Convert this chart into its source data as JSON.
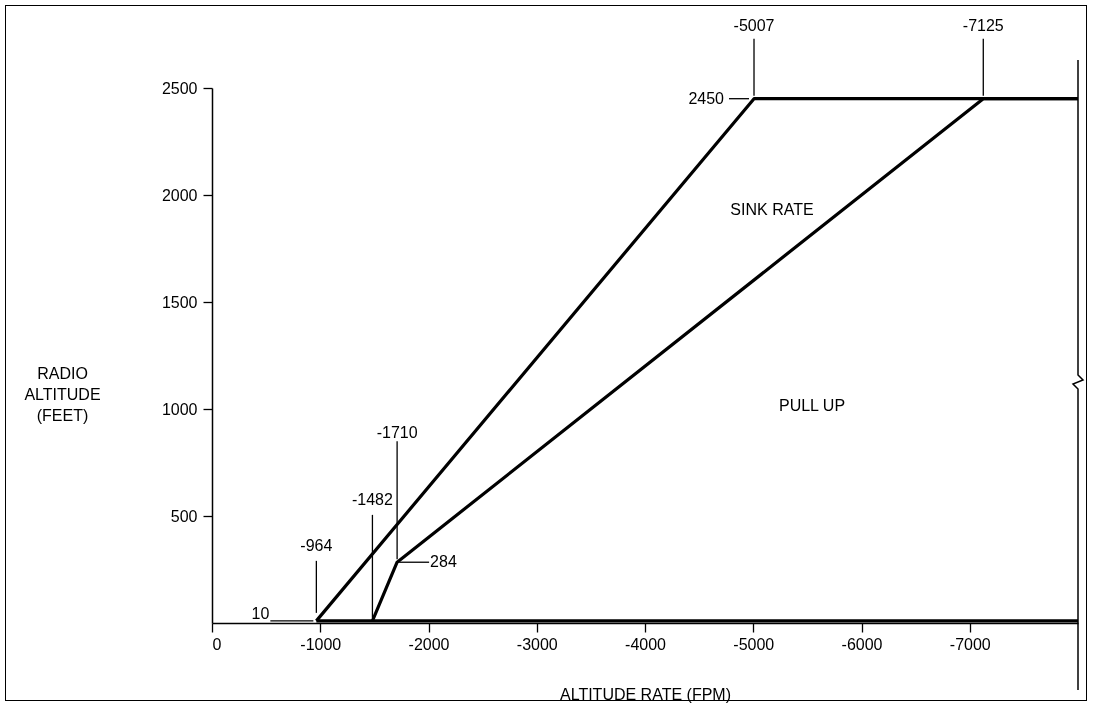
{
  "chart_data": {
    "type": "line",
    "xlabel": "ALTITUDE RATE (FPM)",
    "ylabel": "RADIO ALTITUDE (FEET)",
    "xlim": [
      0,
      -8000
    ],
    "xticks": [
      0,
      -1000,
      -2000,
      -3000,
      -4000,
      -5000,
      -6000,
      -7000
    ],
    "ylim": [
      0,
      2500
    ],
    "yticks": [
      500,
      1000,
      1500,
      2000,
      2500
    ],
    "grid": false,
    "legend": false,
    "marker": "none",
    "line_style": "solid",
    "series": [
      {
        "color": "#000000",
        "x": [
          -964,
          -5007,
          -8000
        ],
        "values": [
          10,
          2450,
          2450
        ]
      },
      {
        "color": "#000000",
        "x": [
          -1482,
          -1710,
          -7125,
          -8000
        ],
        "values": [
          10,
          284,
          2450,
          2450
        ]
      },
      {
        "color": "#000000",
        "x": [
          -964,
          -8000
        ],
        "values": [
          10,
          10
        ]
      }
    ],
    "annotations": [
      {
        "text": "-964",
        "x": -964,
        "y": 10
      },
      {
        "text": "-1482",
        "x": -1482,
        "y": 10
      },
      {
        "text": "-1710",
        "x": -1710,
        "y": 284
      },
      {
        "text": "-5007",
        "x": -5007,
        "y": 2450
      },
      {
        "text": "-7125",
        "x": -7125,
        "y": 2450
      },
      {
        "text": "2450",
        "x": -5007,
        "y": 2450
      },
      {
        "text": "10",
        "x": -964,
        "y": 10
      },
      {
        "text": "284",
        "x": -1710,
        "y": 284
      },
      "SINK RATE",
      "PULL UP"
    ]
  }
}
